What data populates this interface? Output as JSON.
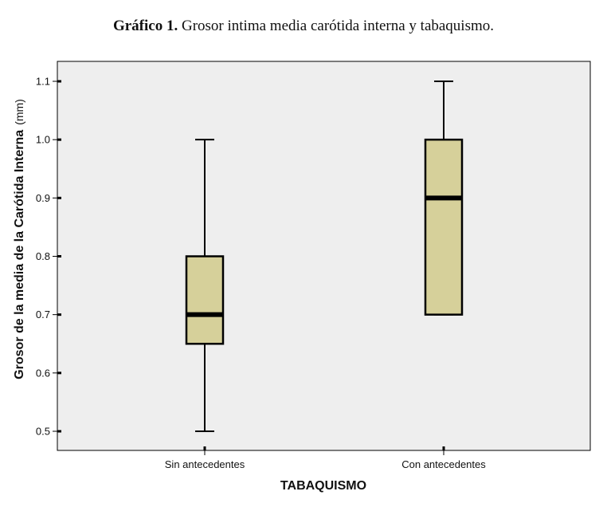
{
  "title_bold": "Gráfico 1.",
  "title_rest": " Grosor intima media carótida interna y tabaquismo.",
  "colors": {
    "plot_bg": "#eeeeee",
    "box_fill": "#d6d09a",
    "stroke": "#000000"
  },
  "chart_data": {
    "type": "boxplot",
    "title": "Gráfico 1. Grosor intima media carótida interna y tabaquismo.",
    "xlabel": "TABAQUISMO",
    "ylabel": "Grosor de la media de la Carótida Interna",
    "ylabel_unit": "(mm)",
    "ylim": [
      0.47,
      1.14
    ],
    "yticks": [
      0.5,
      0.6,
      0.7,
      0.8,
      0.9,
      1.0,
      1.1
    ],
    "ytick_labels": [
      "0.5",
      "0.6",
      "0.7",
      "0.8",
      "0.9",
      "1.0",
      "1.1"
    ],
    "categories": [
      "Sin antecedentes",
      "Con antecedentes"
    ],
    "boxes": [
      {
        "category": "Sin antecedentes",
        "min": 0.5,
        "q1": 0.65,
        "median": 0.7,
        "q3": 0.8,
        "max": 1.0
      },
      {
        "category": "Con antecedentes",
        "min": 0.7,
        "q1": 0.7,
        "median": 0.9,
        "q3": 1.0,
        "max": 1.1
      }
    ],
    "grid": false,
    "legend": "none"
  }
}
